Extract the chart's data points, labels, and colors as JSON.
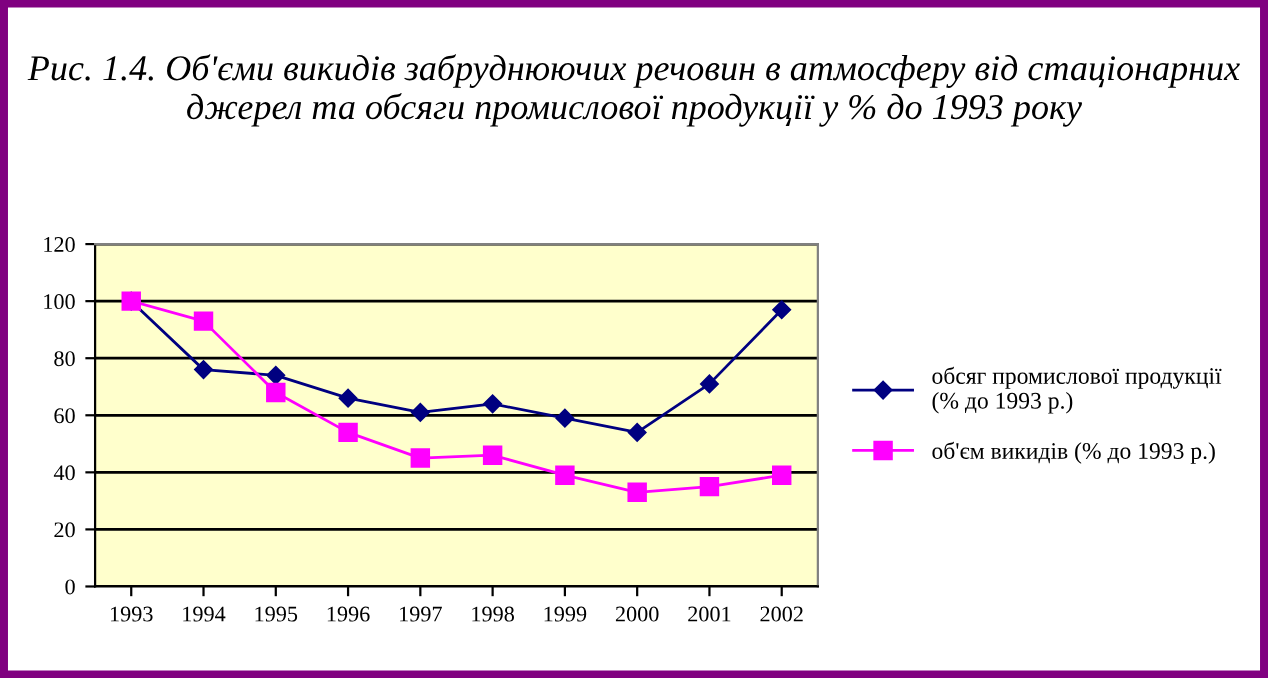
{
  "chart_data": {
    "type": "line",
    "title": "Рис. 1.4. Об'єми викидів забруднюючих речовин в атмосферу від стаціонарних джерел та обсяги промислової продукції у % до 1993 року",
    "categories": [
      "1993",
      "1994",
      "1995",
      "1996",
      "1997",
      "1998",
      "1999",
      "2000",
      "2001",
      "2002"
    ],
    "series": [
      {
        "name": "обсяг промислової продукції (% до 1993 р.)",
        "color": "#000080",
        "marker": "diamond",
        "values": [
          100,
          76,
          74,
          66,
          61,
          64,
          59,
          54,
          71,
          97
        ]
      },
      {
        "name": "об'єм викидів (% до 1993 р.)",
        "color": "#ff00ff",
        "marker": "square",
        "values": [
          100,
          93,
          68,
          54,
          45,
          46,
          39,
          33,
          35,
          39
        ]
      }
    ],
    "ylim": [
      0,
      120
    ],
    "yticks": [
      0,
      20,
      40,
      60,
      80,
      100,
      120
    ],
    "grid": "y",
    "legend": "right",
    "line_style": "solid"
  }
}
